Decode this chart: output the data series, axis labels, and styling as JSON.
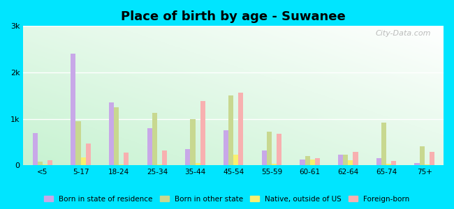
{
  "title": "Place of birth by age - Suwanee",
  "categories": [
    "<5",
    "5-17",
    "18-24",
    "25-34",
    "35-44",
    "45-54",
    "55-59",
    "60-61",
    "62-64",
    "65-74",
    "75+"
  ],
  "series": {
    "Born in state of residence": [
      700,
      2400,
      1350,
      800,
      350,
      750,
      320,
      120,
      230,
      150,
      50
    ],
    "Born in other state": [
      80,
      950,
      1250,
      1130,
      1000,
      1500,
      720,
      200,
      230,
      920,
      400
    ],
    "Native, outside of US": [
      20,
      170,
      20,
      20,
      50,
      230,
      30,
      120,
      110,
      30,
      20
    ],
    "Foreign-born": [
      100,
      470,
      270,
      320,
      1380,
      1560,
      680,
      150,
      280,
      90,
      290
    ]
  },
  "colors": {
    "Born in state of residence": "#c8a8e8",
    "Born in other state": "#c8d890",
    "Native, outside of US": "#f8f070",
    "Foreign-born": "#f8b0b0"
  },
  "ylim": [
    0,
    3000
  ],
  "yticks": [
    0,
    1000,
    2000,
    3000
  ],
  "ytick_labels": [
    "0",
    "1k",
    "2k",
    "3k"
  ],
  "outer_background": "#00e5ff",
  "watermark": "City-Data.com",
  "legend_items": [
    "Born in state of residence",
    "Born in other state",
    "Native, outside of US",
    "Foreign-born"
  ],
  "bar_width": 0.13,
  "title_fontsize": 13
}
